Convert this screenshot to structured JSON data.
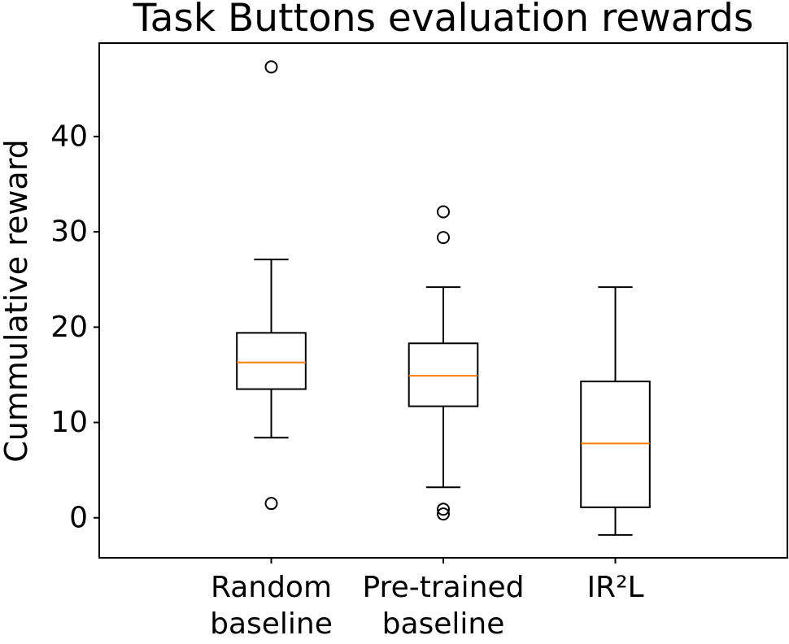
{
  "chart_data": {
    "type": "boxplot",
    "title": "Task Buttons evaluation rewards",
    "xlabel": "",
    "ylabel": "Cummulative reward",
    "ylim": [
      -4.2,
      49.8
    ],
    "yticks": [
      0,
      10,
      20,
      30,
      40
    ],
    "grid": false,
    "categories": [
      [
        "Random",
        "baseline"
      ],
      [
        "Pre-trained",
        "baseline"
      ],
      [
        "IR²L"
      ]
    ],
    "series": [
      {
        "name": "Random baseline",
        "whisker_low": 8.4,
        "q1": 13.5,
        "median": 16.3,
        "q3": 19.4,
        "whisker_high": 27.1,
        "outliers": [
          47.3,
          1.5
        ]
      },
      {
        "name": "Pre-trained baseline",
        "whisker_low": 3.2,
        "q1": 11.7,
        "median": 14.9,
        "q3": 18.3,
        "whisker_high": 24.2,
        "outliers": [
          32.1,
          29.4,
          0.9,
          0.4
        ]
      },
      {
        "name": "IR²L",
        "whisker_low": -1.8,
        "q1": 1.1,
        "median": 7.8,
        "q3": 14.3,
        "whisker_high": 24.2,
        "outliers": []
      }
    ],
    "colors": {
      "box": "#000000",
      "median": "#ff7f0e",
      "background": "#ffffff"
    }
  }
}
